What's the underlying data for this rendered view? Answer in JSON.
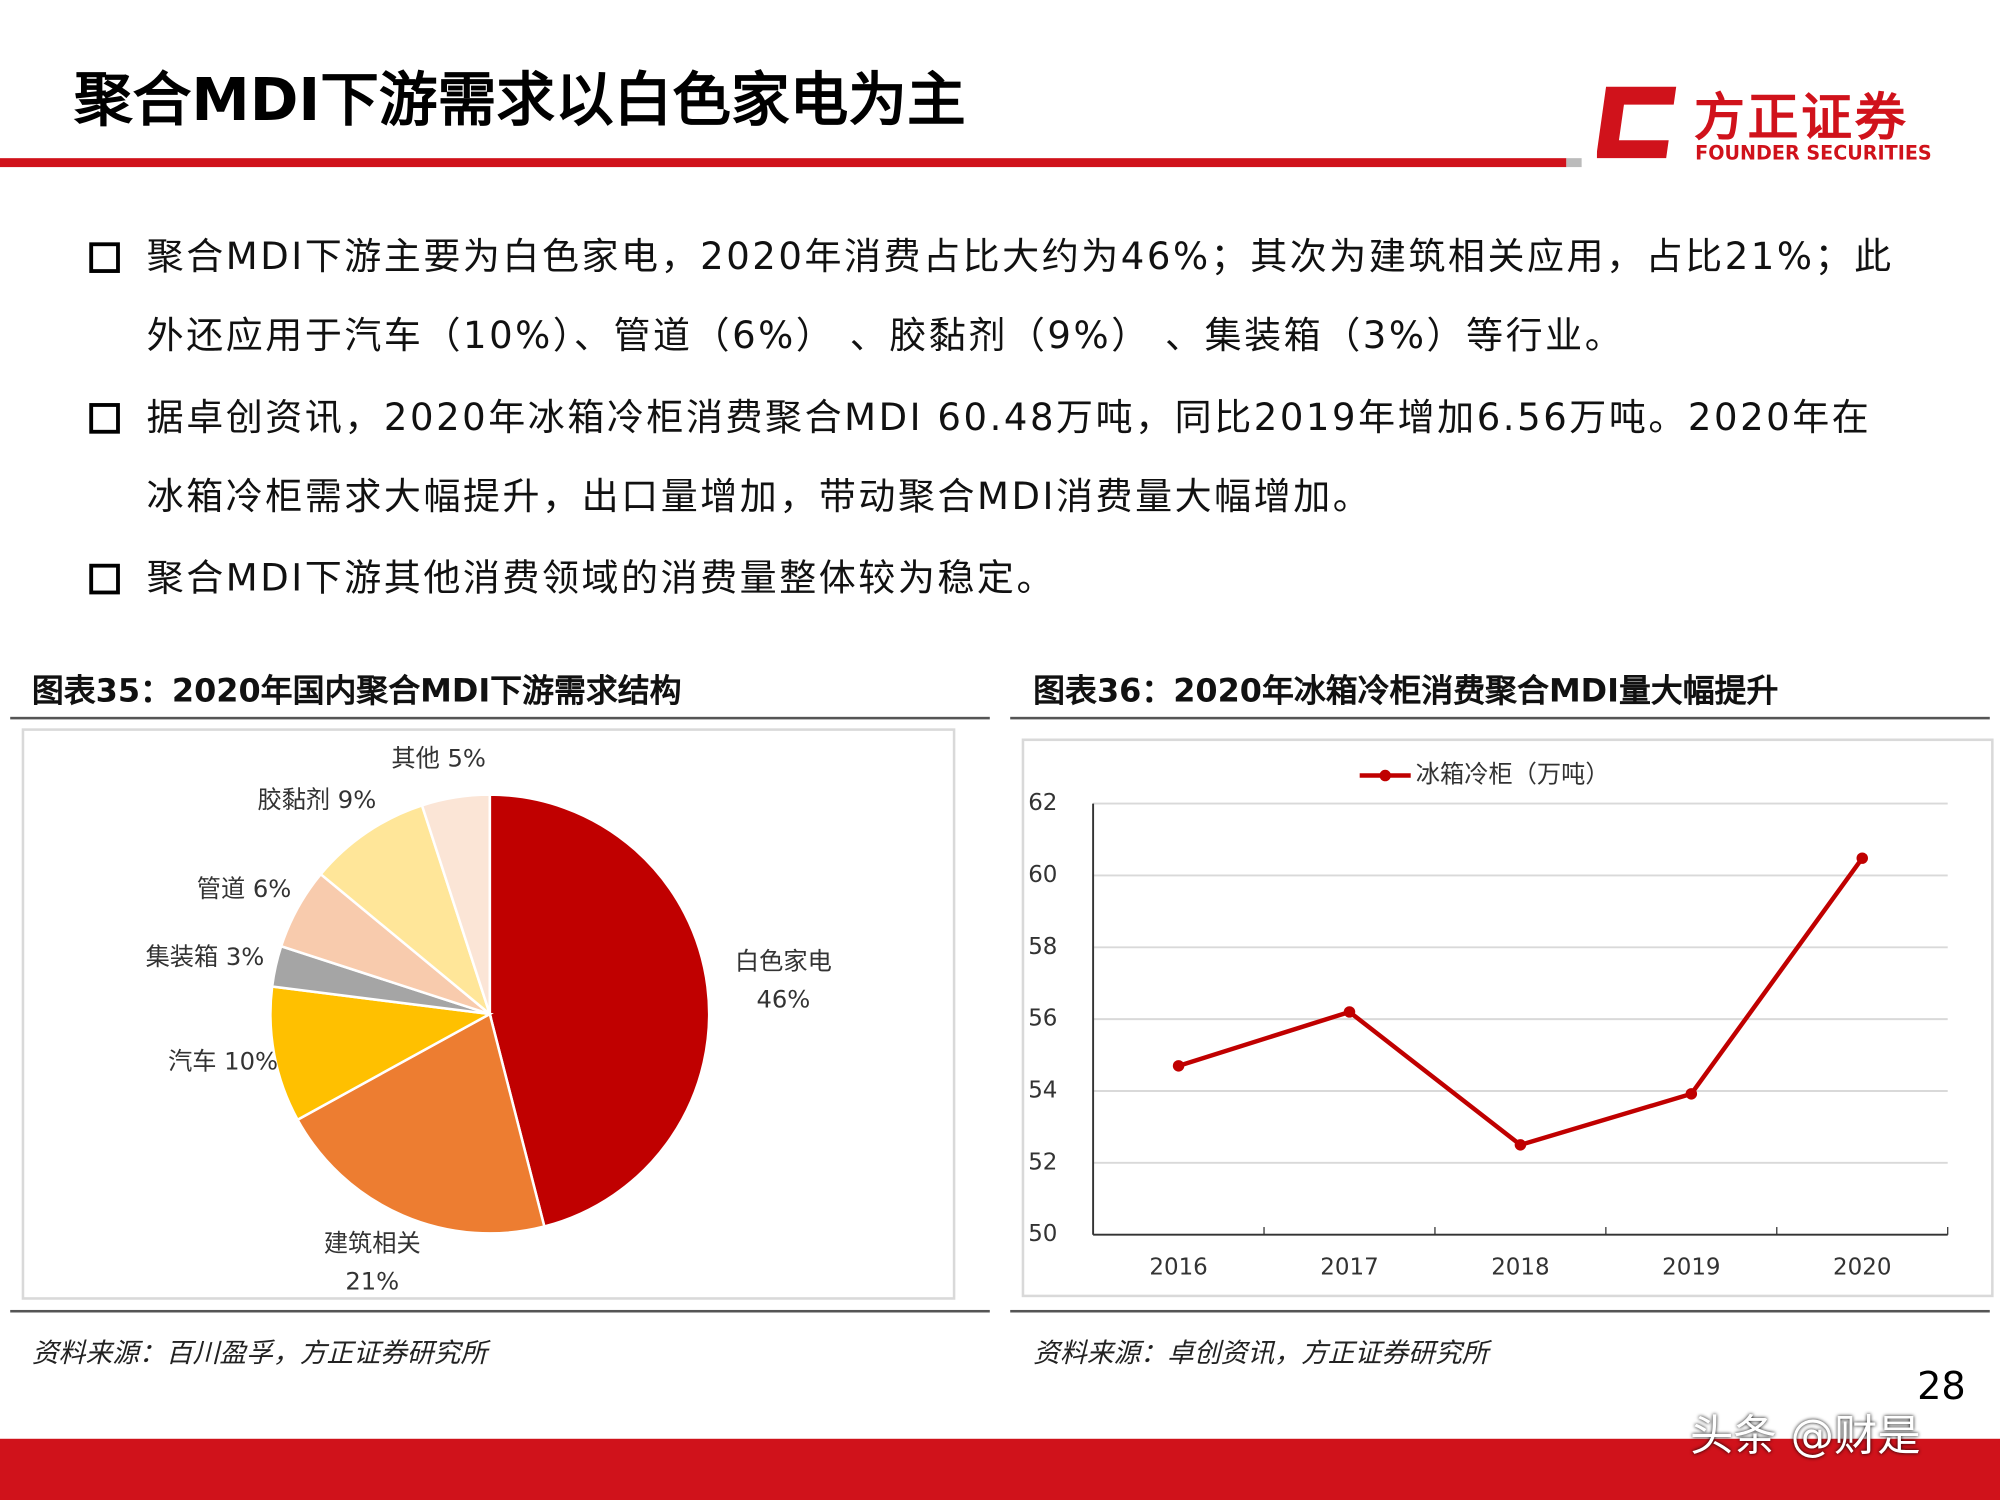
{
  "header": {
    "title": "聚合MDI下游需求以白色家电为主",
    "logo": "方正证券",
    "logo_en": "FOUNDER SECURITIES"
  },
  "bullets": [
    "聚合MDI下游主要为白色家电，2020年消费占比大约为46%；其次为建筑相关应用，占比21%；此外还应用于汽车（10%）、管道（6%）  、胶黏剂（9%）  、集装箱（3%）等行业。",
    "据卓创资讯，2020年冰箱冷柜消费聚合MDI 60.48万吨，同比2019年增加6.56万吨。2020年在冰箱冷柜需求大幅提升，出口量增加，带动聚合MDI消费量大幅增加。",
    "聚合MDI下游其他消费领域的消费量整体较为稳定。"
  ],
  "chart_data": [
    {
      "type": "pie",
      "title": "图表35：2020年国内聚合MDI下游需求结构",
      "source": "资料来源：百川盈孚，方正证券研究所",
      "categories": [
        "白色家电",
        "建筑相关",
        "汽车",
        "集装箱",
        "管道",
        "胶黏剂",
        "其他"
      ],
      "values": [
        46,
        21,
        10,
        3,
        6,
        9,
        5
      ],
      "value_labels": [
        "46%",
        "21%",
        "10%",
        "3%",
        "6%",
        "9%",
        "5%"
      ],
      "colors": [
        "#c00000",
        "#ed7d31",
        "#ffc000",
        "#a5a5a5",
        "#f8cbad",
        "#ffe699",
        "#fbe5d6"
      ]
    },
    {
      "type": "line",
      "title": "图表36：2020年冰箱冷柜消费聚合MDI量大幅提升",
      "source": "资料来源：卓创资讯，方正证券研究所",
      "categories": [
        "2016",
        "2017",
        "2018",
        "2019",
        "2020"
      ],
      "series": [
        {
          "name": "冰箱冷柜（万吨）",
          "color": "#c00000",
          "values": [
            54.7,
            56.2,
            52.5,
            53.92,
            60.48
          ]
        }
      ],
      "ylim": [
        50,
        62
      ],
      "yticks": [
        50,
        52,
        54,
        56,
        58,
        60,
        62
      ],
      "grid": true
    }
  ],
  "page_number": "28",
  "watermark": "头条 @财是"
}
